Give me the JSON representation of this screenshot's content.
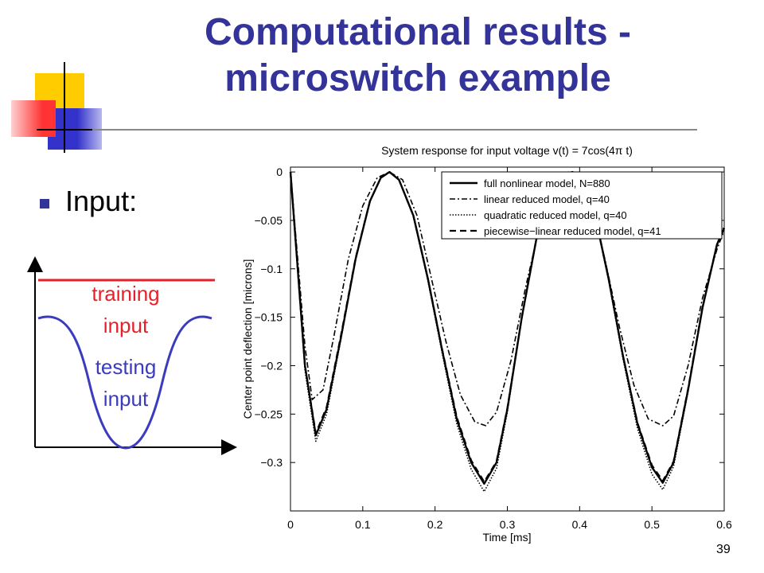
{
  "slide": {
    "title_line1": "Computational results -",
    "title_line2": "microswitch example",
    "bullet": "Input:",
    "page_number": "39",
    "colors": {
      "title": "#333399",
      "accent_yellow": "#ffcc00",
      "accent_red": "#ff3333",
      "accent_blue": "#3333cc",
      "training_line": "#e8202a",
      "testing_curve": "#3b3bbf"
    }
  },
  "input_diagram": {
    "training_label_1": "training",
    "training_label_2": "input",
    "testing_label_1": "testing",
    "testing_label_2": "input"
  },
  "chart_data": {
    "type": "line",
    "title": "System response for input voltage v(t) = 7cos(4π t)",
    "xlabel": "Time [ms]",
    "ylabel": "Center point deflection [microns]",
    "xlim": [
      0,
      0.6
    ],
    "ylim": [
      -0.35,
      0.005
    ],
    "xticks": [
      "0",
      "0.1",
      "0.2",
      "0.3",
      "0.4",
      "0.5",
      "0.6"
    ],
    "yticks": [
      "0",
      "−0.05",
      "−0.1",
      "−0.15",
      "−0.2",
      "−0.25",
      "−0.3"
    ],
    "xtick_values": [
      0,
      0.1,
      0.2,
      0.3,
      0.4,
      0.5,
      0.6
    ],
    "ytick_values": [
      0,
      -0.05,
      -0.1,
      -0.15,
      -0.2,
      -0.25,
      -0.3
    ],
    "legend_position": "top-right",
    "grid": false,
    "series": [
      {
        "name": "full nonlinear model, N=880",
        "style": "solid",
        "x": [
          0,
          0.01,
          0.02,
          0.035,
          0.05,
          0.07,
          0.09,
          0.11,
          0.125,
          0.137,
          0.15,
          0.17,
          0.19,
          0.21,
          0.23,
          0.25,
          0.268,
          0.285,
          0.3,
          0.32,
          0.34,
          0.36,
          0.38,
          0.39,
          0.4,
          0.42,
          0.44,
          0.46,
          0.48,
          0.5,
          0.515,
          0.53,
          0.55,
          0.57,
          0.59,
          0.6
        ],
        "y": [
          0,
          -0.1,
          -0.2,
          -0.272,
          -0.245,
          -0.17,
          -0.09,
          -0.03,
          -0.006,
          0,
          -0.008,
          -0.045,
          -0.11,
          -0.185,
          -0.255,
          -0.3,
          -0.322,
          -0.3,
          -0.245,
          -0.15,
          -0.07,
          -0.02,
          -0.002,
          0,
          -0.004,
          -0.04,
          -0.11,
          -0.19,
          -0.26,
          -0.305,
          -0.321,
          -0.3,
          -0.225,
          -0.14,
          -0.075,
          -0.058
        ]
      },
      {
        "name": "linear reduced model, q=40",
        "style": "dashdot",
        "x": [
          0,
          0.01,
          0.02,
          0.03,
          0.045,
          0.06,
          0.08,
          0.1,
          0.12,
          0.137,
          0.155,
          0.175,
          0.195,
          0.215,
          0.235,
          0.255,
          0.27,
          0.285,
          0.305,
          0.325,
          0.345,
          0.365,
          0.385,
          0.4,
          0.415,
          0.435,
          0.455,
          0.475,
          0.495,
          0.515,
          0.53,
          0.55,
          0.57,
          0.59,
          0.6
        ],
        "y": [
          0,
          -0.09,
          -0.18,
          -0.235,
          -0.225,
          -0.17,
          -0.09,
          -0.035,
          -0.006,
          0,
          -0.008,
          -0.045,
          -0.11,
          -0.175,
          -0.23,
          -0.258,
          -0.262,
          -0.248,
          -0.195,
          -0.12,
          -0.055,
          -0.012,
          0,
          -0.004,
          -0.03,
          -0.09,
          -0.16,
          -0.22,
          -0.255,
          -0.262,
          -0.252,
          -0.2,
          -0.13,
          -0.08,
          -0.06
        ]
      },
      {
        "name": "quadratic reduced model, q=40",
        "style": "dotted",
        "x": [
          0,
          0.01,
          0.02,
          0.035,
          0.05,
          0.07,
          0.09,
          0.11,
          0.125,
          0.137,
          0.15,
          0.17,
          0.19,
          0.21,
          0.23,
          0.25,
          0.268,
          0.285,
          0.3,
          0.32,
          0.34,
          0.36,
          0.38,
          0.39,
          0.4,
          0.42,
          0.44,
          0.46,
          0.48,
          0.5,
          0.515,
          0.53,
          0.55,
          0.57,
          0.59,
          0.6
        ],
        "y": [
          0,
          -0.1,
          -0.205,
          -0.278,
          -0.25,
          -0.172,
          -0.09,
          -0.03,
          -0.006,
          0,
          -0.008,
          -0.046,
          -0.112,
          -0.188,
          -0.26,
          -0.307,
          -0.33,
          -0.306,
          -0.248,
          -0.15,
          -0.07,
          -0.02,
          -0.002,
          0,
          -0.004,
          -0.041,
          -0.112,
          -0.193,
          -0.265,
          -0.312,
          -0.328,
          -0.304,
          -0.227,
          -0.14,
          -0.074,
          -0.056
        ]
      },
      {
        "name": "piecewise−linear reduced model, q=41",
        "style": "dashed",
        "x": [
          0,
          0.01,
          0.02,
          0.035,
          0.05,
          0.07,
          0.09,
          0.11,
          0.125,
          0.137,
          0.15,
          0.17,
          0.19,
          0.21,
          0.23,
          0.25,
          0.268,
          0.285,
          0.3,
          0.32,
          0.34,
          0.36,
          0.38,
          0.39,
          0.4,
          0.42,
          0.44,
          0.46,
          0.48,
          0.5,
          0.515,
          0.53,
          0.55,
          0.57,
          0.59,
          0.6
        ],
        "y": [
          0,
          -0.1,
          -0.2,
          -0.27,
          -0.243,
          -0.168,
          -0.089,
          -0.03,
          -0.006,
          0,
          -0.008,
          -0.045,
          -0.11,
          -0.184,
          -0.253,
          -0.298,
          -0.32,
          -0.299,
          -0.244,
          -0.15,
          -0.07,
          -0.02,
          -0.002,
          0,
          -0.004,
          -0.04,
          -0.11,
          -0.19,
          -0.259,
          -0.303,
          -0.319,
          -0.299,
          -0.224,
          -0.139,
          -0.075,
          -0.058
        ]
      }
    ]
  }
}
